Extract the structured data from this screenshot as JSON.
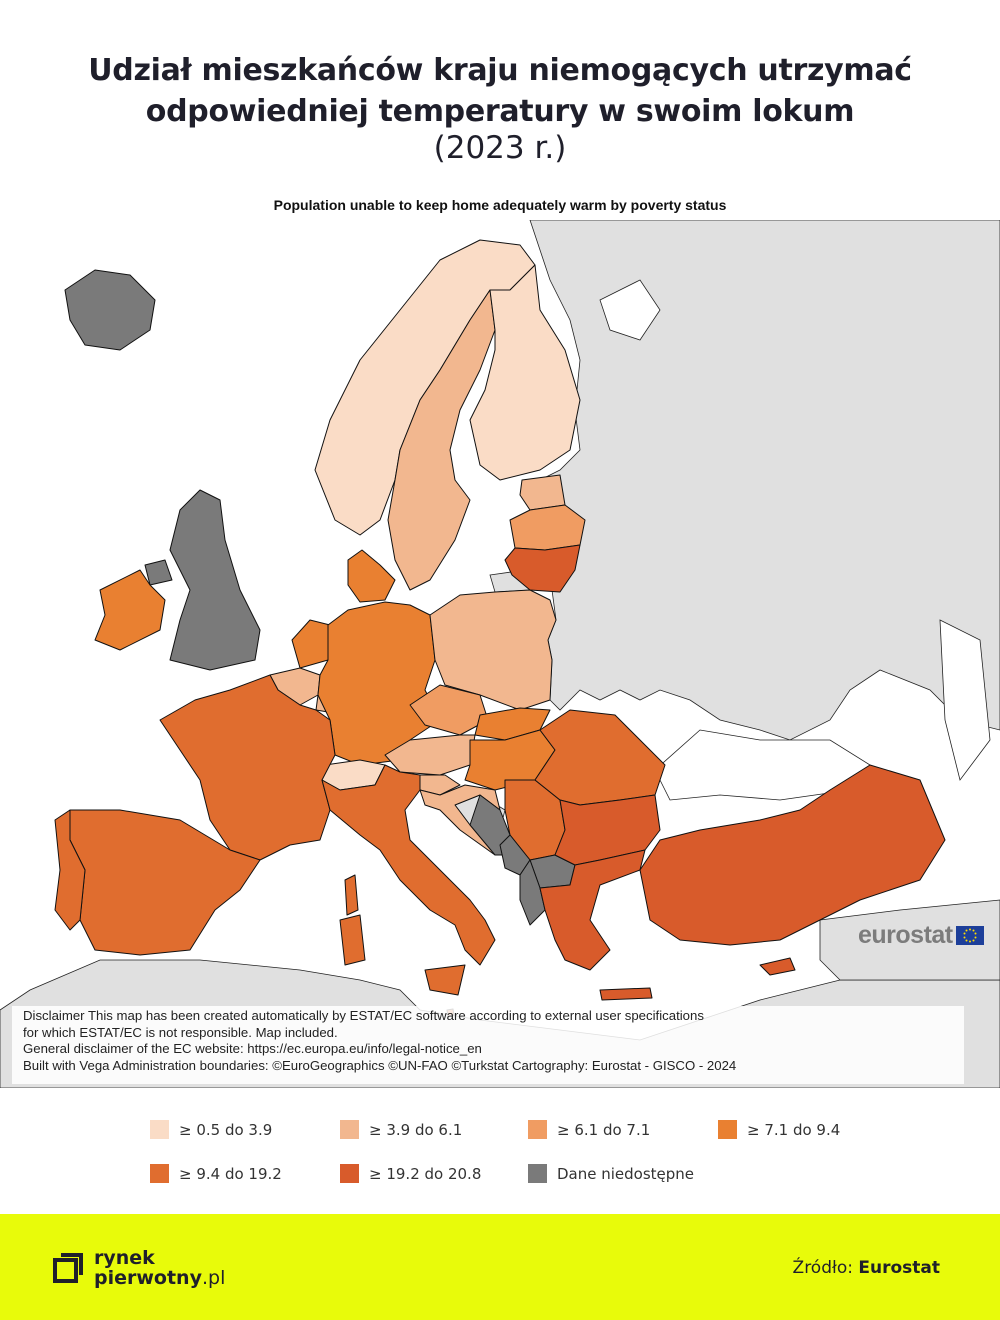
{
  "header": {
    "title_line1": "Udział mieszkańców kraju niemogących utrzymać",
    "title_line2": "odpowiedniej temperatury w swoim lokum",
    "subtitle": "(2023 r.)"
  },
  "map": {
    "title": "Population unable to keep home adequately warm by poverty status",
    "logo_text": "eurostat",
    "disclaimer": [
      "Disclaimer This map has been created automatically by ESTAT/EC software according to external user specifications",
      "for which ESTAT/EC is not responsible. Map included.",
      "General disclaimer of the EC website: https://ec.europa.eu/info/legal-notice_en",
      "Built with Vega Administration boundaries: ©EuroGeographics ©UN-FAO ©Turkstat Cartography: Eurostat - GISCO - 2024"
    ],
    "colors": {
      "sea": "#ffffff",
      "non_member": "#e0e0e0",
      "border": "#111111"
    },
    "countries": [
      {
        "code": "IS",
        "class": 6
      },
      {
        "code": "NO",
        "class": 0
      },
      {
        "code": "SE",
        "class": 1
      },
      {
        "code": "FI",
        "class": 0
      },
      {
        "code": "EE",
        "class": 1
      },
      {
        "code": "LV",
        "class": 2
      },
      {
        "code": "LT",
        "class": 5
      },
      {
        "code": "UK",
        "class": 6
      },
      {
        "code": "IE",
        "class": 3
      },
      {
        "code": "DK",
        "class": 3
      },
      {
        "code": "NL",
        "class": 3
      },
      {
        "code": "BE",
        "class": 1
      },
      {
        "code": "LU",
        "class": 1
      },
      {
        "code": "DE",
        "class": 3
      },
      {
        "code": "PL",
        "class": 1
      },
      {
        "code": "CZ",
        "class": 2
      },
      {
        "code": "SK",
        "class": 3
      },
      {
        "code": "AT",
        "class": 1
      },
      {
        "code": "CH",
        "class": 0
      },
      {
        "code": "FR",
        "class": 4
      },
      {
        "code": "HU",
        "class": 3
      },
      {
        "code": "SI",
        "class": 1
      },
      {
        "code": "HR",
        "class": 1
      },
      {
        "code": "RS",
        "class": 4
      },
      {
        "code": "BA",
        "class": 6
      },
      {
        "code": "ME",
        "class": 6
      },
      {
        "code": "MK",
        "class": 6
      },
      {
        "code": "AL",
        "class": 6
      },
      {
        "code": "RO",
        "class": 4
      },
      {
        "code": "BG",
        "class": 5
      },
      {
        "code": "GR",
        "class": 5
      },
      {
        "code": "TR",
        "class": 5
      },
      {
        "code": "CY",
        "class": 5
      },
      {
        "code": "IT",
        "class": 4
      },
      {
        "code": "ES",
        "class": 4
      },
      {
        "code": "PT",
        "class": 4
      },
      {
        "code": "MT",
        "class": 4
      }
    ]
  },
  "legend": {
    "items": [
      {
        "label": "≥ 0.5 do 3.9",
        "color": "#fadcc6"
      },
      {
        "label": "≥ 3.9 do 6.1",
        "color": "#f2b78f"
      },
      {
        "label": "≥ 6.1 do 7.1",
        "color": "#f09c62"
      },
      {
        "label": "≥ 7.1 do 9.4",
        "color": "#e98031"
      },
      {
        "label": "≥ 9.4 do 19.2",
        "color": "#e06d2f"
      },
      {
        "label": "≥ 19.2 do 20.8",
        "color": "#d85b2b"
      },
      {
        "label": "Dane niedostępne",
        "color": "#7a7a7a"
      }
    ]
  },
  "footer": {
    "brand_line1": "rynek",
    "brand_line2_bold": "pierwotny",
    "brand_line2_rest": ".pl",
    "source_label": "Źródło:",
    "source_value": "Eurostat",
    "brand_color": "#e8fb0a"
  }
}
